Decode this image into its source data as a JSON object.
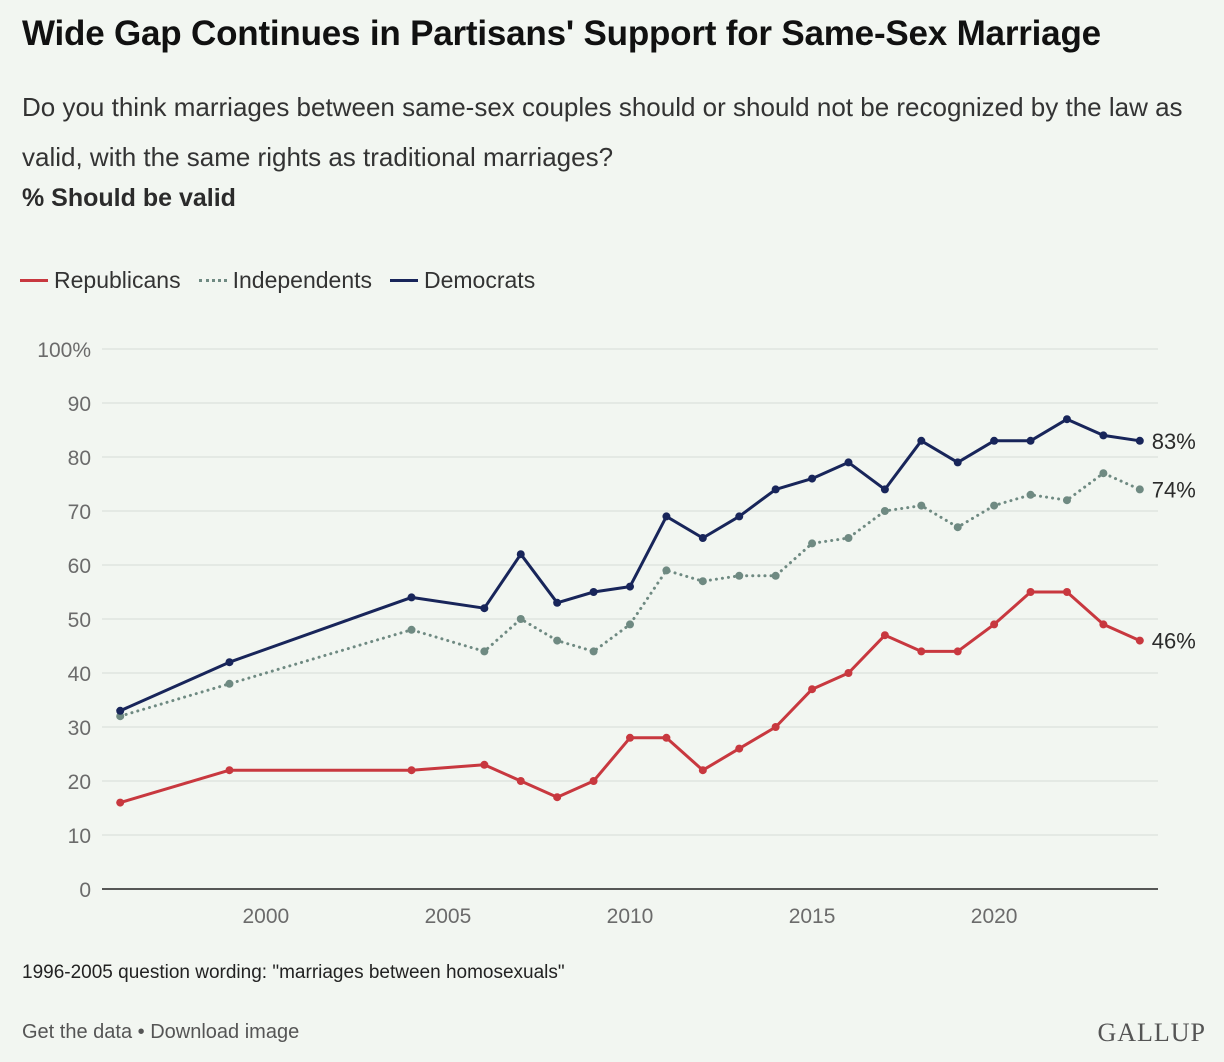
{
  "title": "Wide Gap Continues in Partisans' Support for Same-Sex Marriage",
  "subtitle": "Do you think marriages between same-sex couples should or should not be recognized by the law as valid, with the same rights as traditional marriages?",
  "unit_label": "% Should be valid",
  "note": "1996-2005 question wording: \"marriages between homosexuals\"",
  "footer": {
    "get_data": "Get the data",
    "separator": "•",
    "download": "Download image",
    "brand": "GALLUP"
  },
  "chart_data": {
    "type": "line",
    "x": [
      1996,
      1999,
      2004,
      2006,
      2007,
      2008,
      2009,
      2010,
      2011,
      2012,
      2013,
      2014,
      2015,
      2016,
      2017,
      2018,
      2019,
      2020,
      2021,
      2022,
      2023,
      2024
    ],
    "xlim": [
      1995.5,
      2024.5
    ],
    "ylim": [
      0,
      100
    ],
    "x_ticks": [
      2000,
      2005,
      2010,
      2015,
      2020
    ],
    "y_ticks": [
      0,
      10,
      20,
      30,
      40,
      50,
      60,
      70,
      80,
      90,
      100
    ],
    "y_tick_labels": [
      "0",
      "10",
      "20",
      "30",
      "40",
      "50",
      "60",
      "70",
      "80",
      "90",
      "100%"
    ],
    "grid": true,
    "legend_position": "top-left",
    "series": [
      {
        "name": "Republicans",
        "color": "#c8383f",
        "style": "solid",
        "values": [
          16,
          22,
          22,
          23,
          20,
          17,
          20,
          28,
          28,
          22,
          26,
          30,
          37,
          40,
          47,
          44,
          44,
          49,
          55,
          55,
          49,
          46
        ],
        "end_label": "46%"
      },
      {
        "name": "Independents",
        "color": "#6f8a82",
        "style": "dotted",
        "values": [
          32,
          38,
          48,
          44,
          50,
          46,
          44,
          49,
          59,
          57,
          58,
          58,
          64,
          65,
          70,
          71,
          67,
          71,
          73,
          72,
          77,
          74
        ],
        "end_label": "74%"
      },
      {
        "name": "Democrats",
        "color": "#18255a",
        "style": "solid",
        "values": [
          33,
          42,
          54,
          52,
          62,
          53,
          55,
          56,
          69,
          65,
          69,
          74,
          76,
          79,
          74,
          83,
          79,
          83,
          83,
          87,
          84,
          83
        ],
        "end_label": "83%"
      }
    ]
  }
}
